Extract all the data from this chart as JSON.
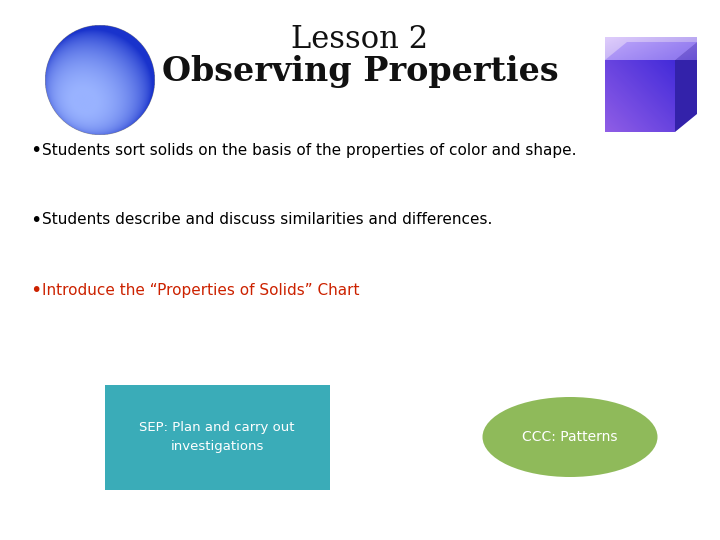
{
  "title_line1": "Lesson 2",
  "title_line2": "Observing Properties",
  "title_fontsize": 22,
  "bullet1": "Students sort solids on the basis of the properties of color and shape.",
  "bullet2": "Students describe and discuss similarities and differences.",
  "bullet3": "Introduce the “Properties of Solids” Chart",
  "bullet_fontsize": 11,
  "bullet_color1": "#000000",
  "bullet_color2": "#000000",
  "bullet_color3": "#cc2200",
  "box_text": "SEP: Plan and carry out\ninvestigations",
  "box_color": "#3aacb8",
  "box_text_color": "#ffffff",
  "oval_text": "CCC: Patterns",
  "oval_color": "#8fba5a",
  "oval_text_color": "#ffffff",
  "background_color": "#ffffff"
}
